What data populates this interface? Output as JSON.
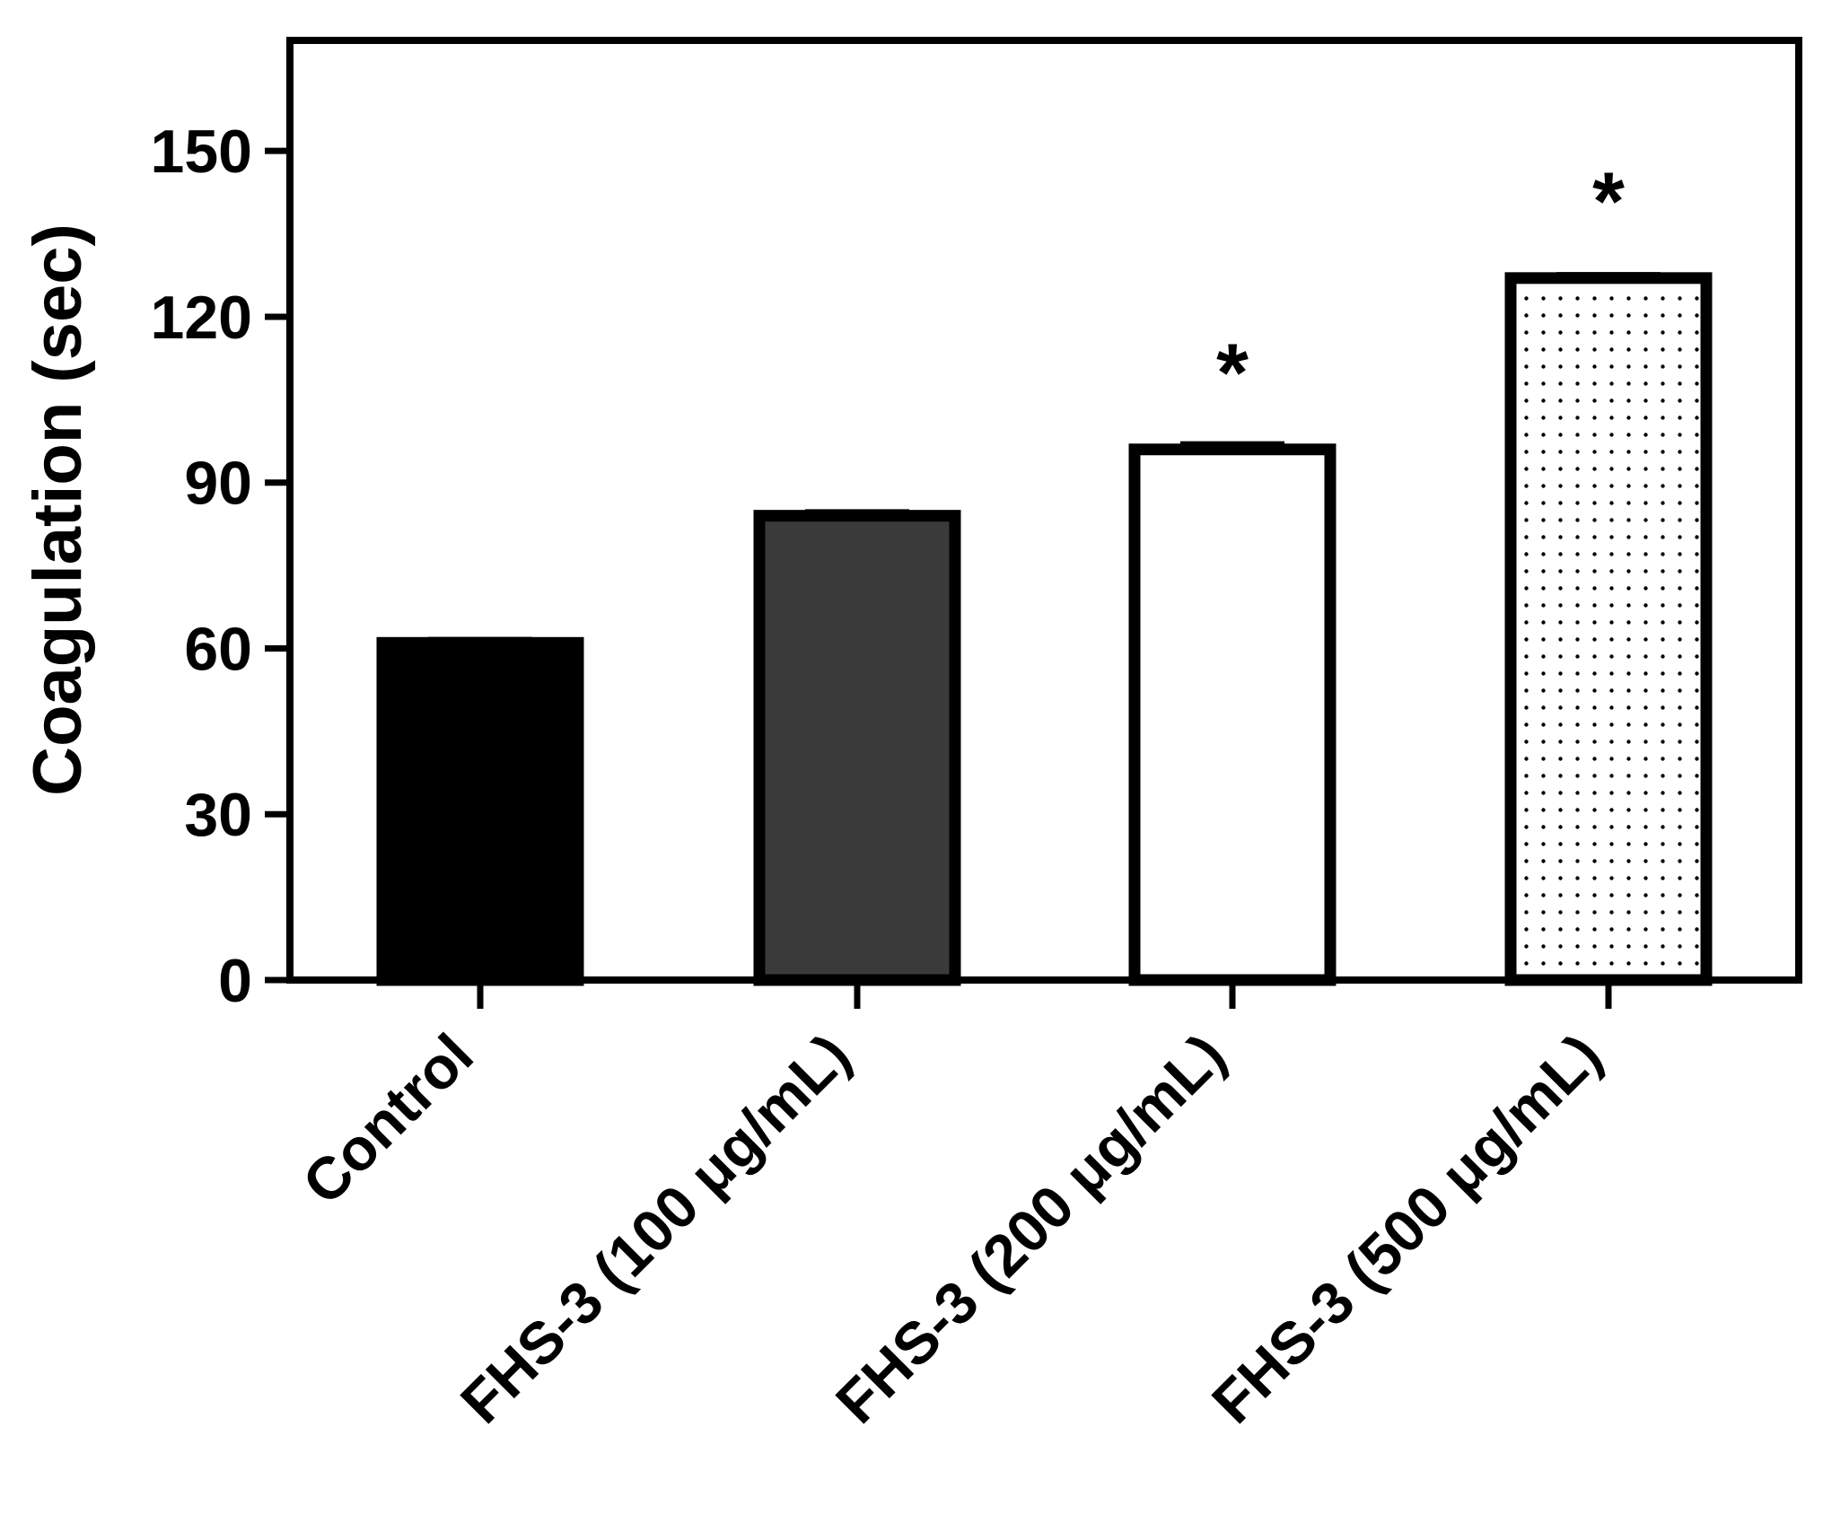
{
  "chart_data": {
    "type": "bar",
    "title": "",
    "xlabel": "",
    "ylabel": "Coagulation (sec)",
    "ylim": [
      0,
      170
    ],
    "yticks": [
      0,
      30,
      60,
      90,
      120,
      150
    ],
    "grid": false,
    "legend": "none",
    "categories": [
      "Control",
      "FHS-3 (100 μg/mL)",
      "FHS-3 (200 μg/mL)",
      "FHS-3 (500 μg/mL)"
    ],
    "values": [
      61,
      84,
      96,
      127
    ],
    "errors": [
      0.6,
      0.7,
      1.0,
      0.6
    ],
    "significance": [
      "",
      "",
      "*",
      "*"
    ],
    "bar_styles": [
      {
        "fill": "#000000",
        "pattern": "solid"
      },
      {
        "fill": "#3a3a3a",
        "pattern": "solid"
      },
      {
        "fill": "#ffffff",
        "pattern": "solid"
      },
      {
        "fill": "#ffffff",
        "pattern": "dots"
      }
    ],
    "colors": {
      "outline": "#000000",
      "dots": "#000000"
    }
  }
}
